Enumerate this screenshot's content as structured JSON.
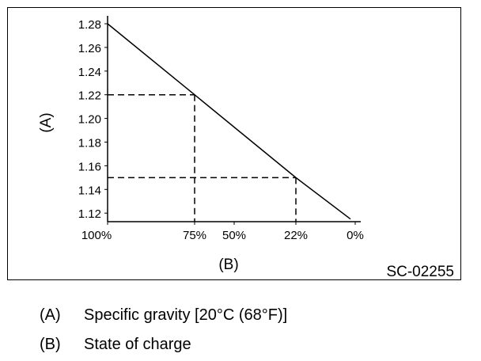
{
  "chart_data": {
    "type": "line",
    "title": "",
    "ylabel": "(A)",
    "xlabel": "(B)",
    "figure_id": "SC-02255",
    "ylim": [
      1.11,
      1.285
    ],
    "y_ticks": [
      "1.12",
      "1.14",
      "1.16",
      "1.18",
      "1.20",
      "1.22",
      "1.24",
      "1.26",
      "1.28"
    ],
    "x_ticks": [
      "100%",
      "75%",
      "50%",
      "22%",
      "0%"
    ],
    "series": [
      {
        "name": "Specific gravity vs state of charge",
        "x": [
          "100%",
          "75%",
          "22%",
          "0%"
        ],
        "y": [
          1.28,
          1.22,
          1.15,
          1.115
        ]
      }
    ],
    "reference_lines": [
      {
        "x": "75%",
        "y": 1.22
      },
      {
        "x": "22%",
        "y": 1.15
      }
    ],
    "grid": false
  },
  "legend": [
    {
      "key": "(A)",
      "text": "Specific gravity [20°C (68°F)]"
    },
    {
      "key": "(B)",
      "text": "State of charge"
    }
  ]
}
